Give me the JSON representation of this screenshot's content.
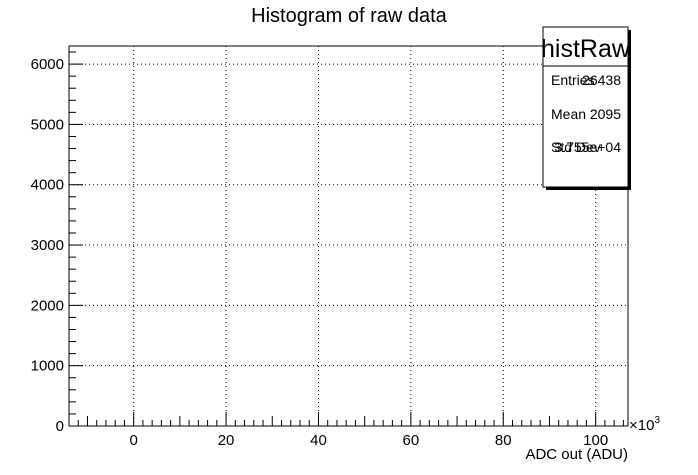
{
  "chart_data": {
    "type": "bar",
    "title": "Histogram of raw data",
    "xlabel": "ADC out (ADU)",
    "ylabel": "",
    "x_scale_label": "×10",
    "x_scale_exponent": "3",
    "xlim": [
      -14,
      107
    ],
    "ylim": [
      0,
      6300
    ],
    "x_ticks": [
      0,
      20,
      40,
      60,
      80,
      100
    ],
    "y_ticks": [
      0,
      1000,
      2000,
      3000,
      4000,
      5000,
      6000
    ],
    "grid": true,
    "series": [
      {
        "values": []
      }
    ],
    "stats_box": {
      "name": "histRaw",
      "placement": "top-right",
      "rows": [
        {
          "label": "Entries",
          "value": "26438"
        },
        {
          "label": "Mean",
          "value": "2095"
        },
        {
          "label": "Std Dev",
          "value": "3.755e+04"
        }
      ]
    }
  }
}
